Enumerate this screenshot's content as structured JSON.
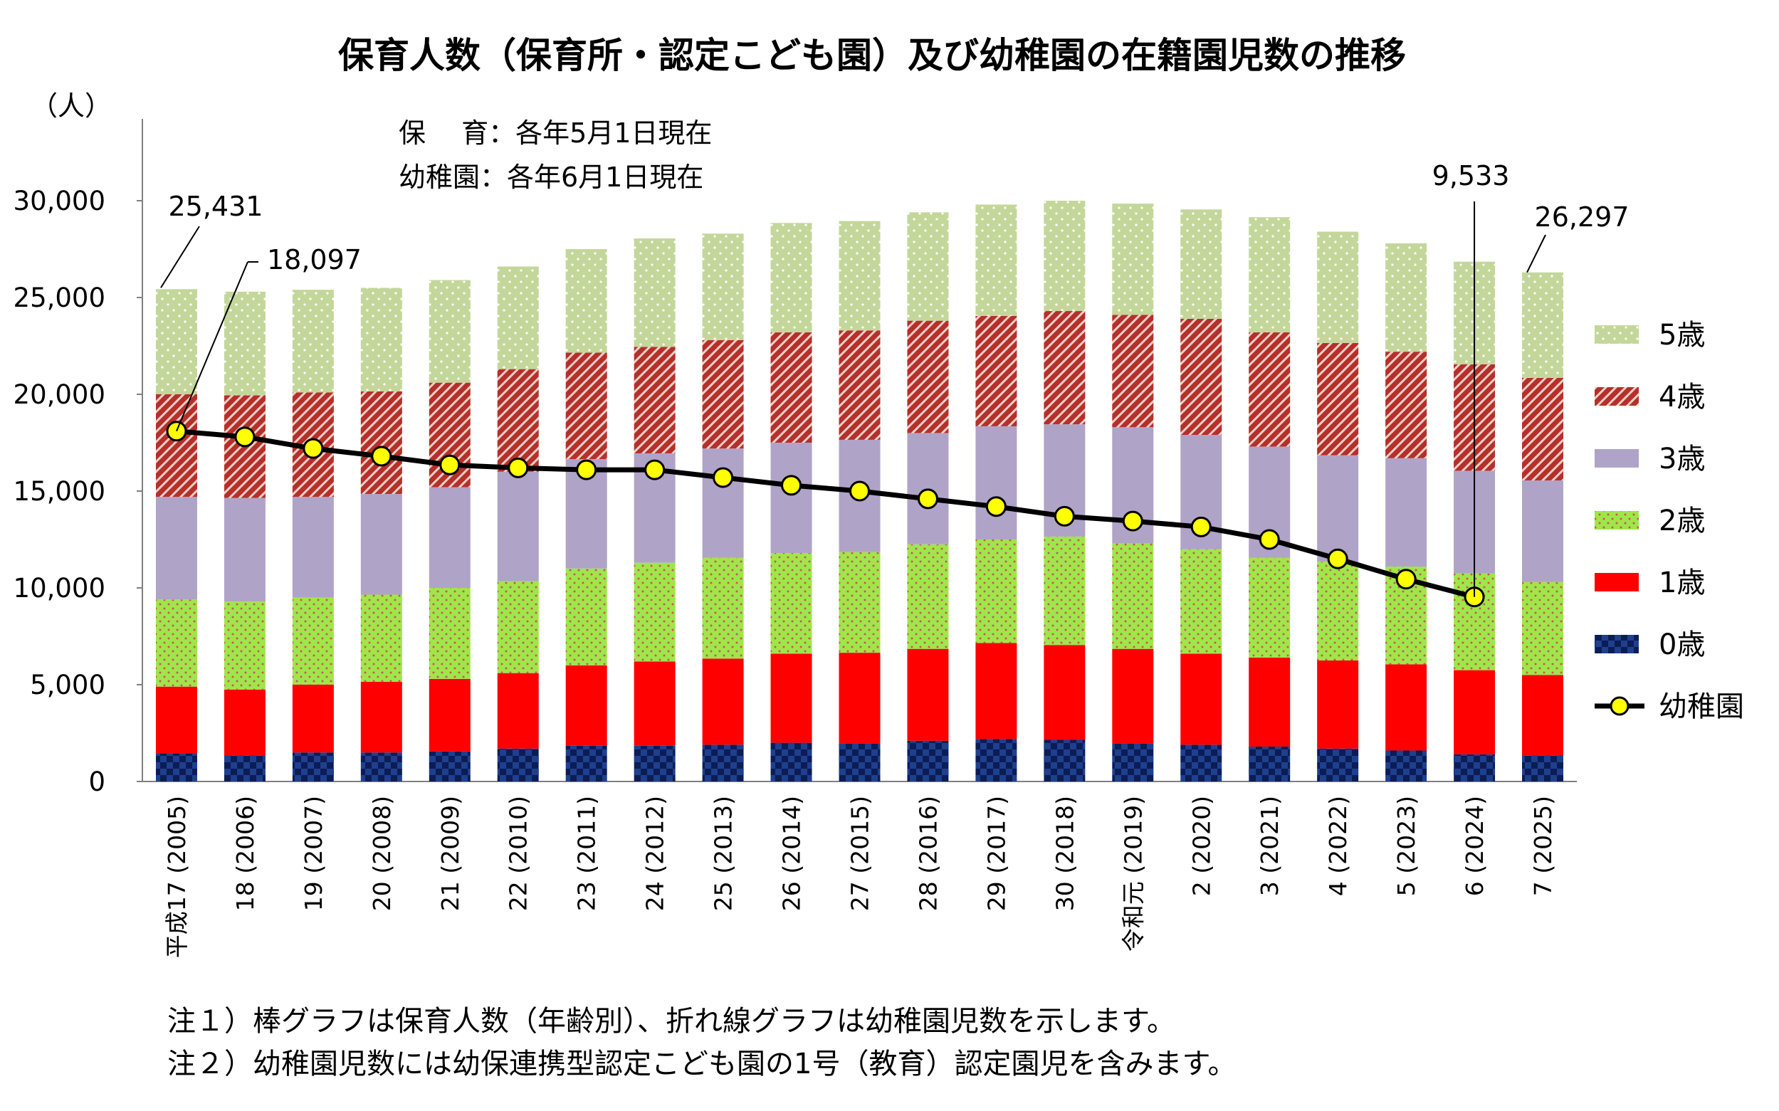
{
  "chart_data": {
    "type": "bar",
    "title": "保育人数（保育所・認定こども園）及び幼稚園の在籍園児数の推移",
    "ylabel": "（人）",
    "ylim": [
      0,
      30000
    ],
    "yticks": [
      "0",
      "5,000",
      "10,000",
      "15,000",
      "20,000",
      "25,000",
      "30,000"
    ],
    "stacked": true,
    "categories": [
      "平成17 (2005)",
      "18 (2006)",
      "19 (2007)",
      "20 (2008)",
      "21 (2009)",
      "22 (2010)",
      "23 (2011)",
      "24 (2012)",
      "25 (2013)",
      "26 (2014)",
      "27 (2015)",
      "28 (2016)",
      "29 (2017)",
      "30 (2018)",
      "令和元 (2019)",
      "2 (2020)",
      "3 (2021)",
      "4 (2022)",
      "5 (2023)",
      "6 (2024)",
      "7 (2025)"
    ],
    "series": [
      {
        "name": "0歳",
        "color": "#1f3f8f",
        "values": [
          1450,
          1350,
          1500,
          1500,
          1550,
          1700,
          1850,
          1850,
          1900,
          2000,
          1950,
          2100,
          2200,
          2150,
          1950,
          1900,
          1800,
          1700,
          1600,
          1400,
          1350
        ]
      },
      {
        "name": "1歳",
        "color": "#ff0000",
        "values": [
          3450,
          3400,
          3500,
          3650,
          3750,
          3900,
          4150,
          4350,
          4450,
          4600,
          4700,
          4750,
          4950,
          4900,
          4900,
          4700,
          4600,
          4550,
          4450,
          4350,
          4150
        ]
      },
      {
        "name": "2歳",
        "color": "#a0e64a",
        "values": [
          4500,
          4550,
          4500,
          4500,
          4700,
          4750,
          5000,
          5100,
          5200,
          5200,
          5200,
          5400,
          5350,
          5600,
          5450,
          5400,
          5150,
          5100,
          5050,
          5000,
          4800
        ]
      },
      {
        "name": "3歳",
        "color": "#b0a3c8",
        "values": [
          5300,
          5350,
          5200,
          5200,
          5200,
          5650,
          5650,
          5650,
          5650,
          5700,
          5800,
          5750,
          5850,
          5800,
          6000,
          5900,
          5750,
          5500,
          5600,
          5300,
          5250
        ]
      },
      {
        "name": "4歳",
        "color": "#b5302a",
        "values": [
          5300,
          5300,
          5400,
          5300,
          5400,
          5300,
          5500,
          5500,
          5600,
          5700,
          5650,
          5800,
          5700,
          5850,
          5800,
          6000,
          5900,
          5800,
          5500,
          5500,
          5300
        ]
      },
      {
        "name": "5歳",
        "color": "#c4d79b",
        "values": [
          5431,
          5350,
          5300,
          5350,
          5300,
          5300,
          5350,
          5600,
          5500,
          5650,
          5650,
          5600,
          5750,
          5700,
          5750,
          5650,
          5950,
          5750,
          5600,
          5300,
          5447
        ]
      }
    ],
    "line": {
      "name": "幼稚園",
      "values": [
        18097,
        17800,
        17200,
        16800,
        16350,
        16200,
        16100,
        16100,
        15700,
        15300,
        15000,
        14600,
        14200,
        13700,
        13450,
        13150,
        12500,
        11500,
        10450,
        9533,
        null
      ]
    },
    "annotations": [
      "25,431",
      "18,097",
      "9,533",
      "26,297"
    ],
    "note_dates": [
      "保　 育：各年5月1日現在",
      "幼稚園：各年6月1日現在"
    ],
    "legend_position": "right",
    "grid": false
  },
  "notes": [
    "注１）棒グラフは保育人数（年齢別）、折れ線グラフは幼稚園児数を示します。",
    "注２）幼稚園児数には幼保連携型認定こども園の1号（教育）認定園児を含みます。"
  ]
}
